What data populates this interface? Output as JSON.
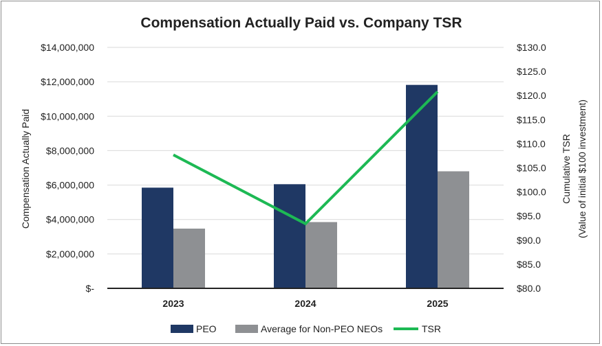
{
  "chart_data": {
    "type": "bar+line",
    "title": "Compensation Actually Paid vs. Company TSR",
    "categories": [
      "2023",
      "2024",
      "2025"
    ],
    "series": [
      {
        "name": "PEO",
        "type": "bar",
        "axis": "left",
        "color": "#1f3864",
        "values": [
          5850000,
          6050000,
          11820000
        ]
      },
      {
        "name": "Average for Non-PEO NEOs",
        "type": "bar",
        "axis": "left",
        "color": "#8e9093",
        "values": [
          3470000,
          3850000,
          6800000
        ]
      },
      {
        "name": "TSR",
        "type": "line",
        "axis": "right",
        "color": "#1db954",
        "values": [
          107.7,
          93.4,
          120.8
        ]
      }
    ],
    "y_left": {
      "label": "Compensation Actually Paid",
      "min": 0,
      "max": 14000000,
      "ticks": [
        0,
        2000000,
        4000000,
        6000000,
        8000000,
        10000000,
        12000000,
        14000000
      ],
      "tick_labels": [
        "$-",
        "$2,000,000",
        "$4,000,000",
        "$6,000,000",
        "$8,000,000",
        "$10,000,000",
        "$12,000,000",
        "$14,000,000"
      ]
    },
    "y_right": {
      "label_line1": "Cumulative TSR",
      "label_line2": "(Value of initial $100 investment)",
      "min": 80,
      "max": 130,
      "ticks": [
        80,
        85,
        90,
        95,
        100,
        105,
        110,
        115,
        120,
        125,
        130
      ],
      "tick_labels": [
        "$80.0",
        "$85.0",
        "$90.0",
        "$95.0",
        "$100.0",
        "$105.0",
        "$110.0",
        "$115.0",
        "$120.0",
        "$125.0",
        "$130.0"
      ]
    },
    "grid": true,
    "legend_position": "bottom"
  }
}
